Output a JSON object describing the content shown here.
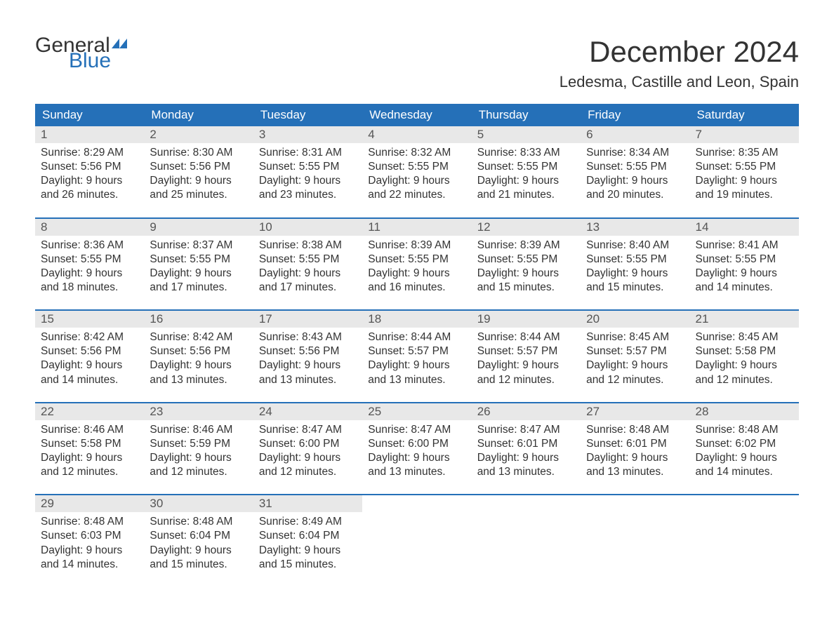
{
  "logo": {
    "general": "General",
    "blue": "Blue",
    "flag_color": "#2570b8"
  },
  "title": "December 2024",
  "location": "Ledesma, Castille and Leon, Spain",
  "colors": {
    "header_bg": "#2570b8",
    "header_text": "#ffffff",
    "daynum_bg": "#e8e8e8",
    "daynum_text": "#555555",
    "body_text": "#333333",
    "rule": "#2570b8",
    "page_bg": "#ffffff"
  },
  "typography": {
    "title_fontsize": 42,
    "location_fontsize": 22,
    "weekday_fontsize": 17,
    "daynum_fontsize": 17,
    "cell_fontsize": 15.5
  },
  "weekdays": [
    "Sunday",
    "Monday",
    "Tuesday",
    "Wednesday",
    "Thursday",
    "Friday",
    "Saturday"
  ],
  "weeks": [
    [
      {
        "day": "1",
        "sunrise": "Sunrise: 8:29 AM",
        "sunset": "Sunset: 5:56 PM",
        "dl1": "Daylight: 9 hours",
        "dl2": "and 26 minutes."
      },
      {
        "day": "2",
        "sunrise": "Sunrise: 8:30 AM",
        "sunset": "Sunset: 5:56 PM",
        "dl1": "Daylight: 9 hours",
        "dl2": "and 25 minutes."
      },
      {
        "day": "3",
        "sunrise": "Sunrise: 8:31 AM",
        "sunset": "Sunset: 5:55 PM",
        "dl1": "Daylight: 9 hours",
        "dl2": "and 23 minutes."
      },
      {
        "day": "4",
        "sunrise": "Sunrise: 8:32 AM",
        "sunset": "Sunset: 5:55 PM",
        "dl1": "Daylight: 9 hours",
        "dl2": "and 22 minutes."
      },
      {
        "day": "5",
        "sunrise": "Sunrise: 8:33 AM",
        "sunset": "Sunset: 5:55 PM",
        "dl1": "Daylight: 9 hours",
        "dl2": "and 21 minutes."
      },
      {
        "day": "6",
        "sunrise": "Sunrise: 8:34 AM",
        "sunset": "Sunset: 5:55 PM",
        "dl1": "Daylight: 9 hours",
        "dl2": "and 20 minutes."
      },
      {
        "day": "7",
        "sunrise": "Sunrise: 8:35 AM",
        "sunset": "Sunset: 5:55 PM",
        "dl1": "Daylight: 9 hours",
        "dl2": "and 19 minutes."
      }
    ],
    [
      {
        "day": "8",
        "sunrise": "Sunrise: 8:36 AM",
        "sunset": "Sunset: 5:55 PM",
        "dl1": "Daylight: 9 hours",
        "dl2": "and 18 minutes."
      },
      {
        "day": "9",
        "sunrise": "Sunrise: 8:37 AM",
        "sunset": "Sunset: 5:55 PM",
        "dl1": "Daylight: 9 hours",
        "dl2": "and 17 minutes."
      },
      {
        "day": "10",
        "sunrise": "Sunrise: 8:38 AM",
        "sunset": "Sunset: 5:55 PM",
        "dl1": "Daylight: 9 hours",
        "dl2": "and 17 minutes."
      },
      {
        "day": "11",
        "sunrise": "Sunrise: 8:39 AM",
        "sunset": "Sunset: 5:55 PM",
        "dl1": "Daylight: 9 hours",
        "dl2": "and 16 minutes."
      },
      {
        "day": "12",
        "sunrise": "Sunrise: 8:39 AM",
        "sunset": "Sunset: 5:55 PM",
        "dl1": "Daylight: 9 hours",
        "dl2": "and 15 minutes."
      },
      {
        "day": "13",
        "sunrise": "Sunrise: 8:40 AM",
        "sunset": "Sunset: 5:55 PM",
        "dl1": "Daylight: 9 hours",
        "dl2": "and 15 minutes."
      },
      {
        "day": "14",
        "sunrise": "Sunrise: 8:41 AM",
        "sunset": "Sunset: 5:55 PM",
        "dl1": "Daylight: 9 hours",
        "dl2": "and 14 minutes."
      }
    ],
    [
      {
        "day": "15",
        "sunrise": "Sunrise: 8:42 AM",
        "sunset": "Sunset: 5:56 PM",
        "dl1": "Daylight: 9 hours",
        "dl2": "and 14 minutes."
      },
      {
        "day": "16",
        "sunrise": "Sunrise: 8:42 AM",
        "sunset": "Sunset: 5:56 PM",
        "dl1": "Daylight: 9 hours",
        "dl2": "and 13 minutes."
      },
      {
        "day": "17",
        "sunrise": "Sunrise: 8:43 AM",
        "sunset": "Sunset: 5:56 PM",
        "dl1": "Daylight: 9 hours",
        "dl2": "and 13 minutes."
      },
      {
        "day": "18",
        "sunrise": "Sunrise: 8:44 AM",
        "sunset": "Sunset: 5:57 PM",
        "dl1": "Daylight: 9 hours",
        "dl2": "and 13 minutes."
      },
      {
        "day": "19",
        "sunrise": "Sunrise: 8:44 AM",
        "sunset": "Sunset: 5:57 PM",
        "dl1": "Daylight: 9 hours",
        "dl2": "and 12 minutes."
      },
      {
        "day": "20",
        "sunrise": "Sunrise: 8:45 AM",
        "sunset": "Sunset: 5:57 PM",
        "dl1": "Daylight: 9 hours",
        "dl2": "and 12 minutes."
      },
      {
        "day": "21",
        "sunrise": "Sunrise: 8:45 AM",
        "sunset": "Sunset: 5:58 PM",
        "dl1": "Daylight: 9 hours",
        "dl2": "and 12 minutes."
      }
    ],
    [
      {
        "day": "22",
        "sunrise": "Sunrise: 8:46 AM",
        "sunset": "Sunset: 5:58 PM",
        "dl1": "Daylight: 9 hours",
        "dl2": "and 12 minutes."
      },
      {
        "day": "23",
        "sunrise": "Sunrise: 8:46 AM",
        "sunset": "Sunset: 5:59 PM",
        "dl1": "Daylight: 9 hours",
        "dl2": "and 12 minutes."
      },
      {
        "day": "24",
        "sunrise": "Sunrise: 8:47 AM",
        "sunset": "Sunset: 6:00 PM",
        "dl1": "Daylight: 9 hours",
        "dl2": "and 12 minutes."
      },
      {
        "day": "25",
        "sunrise": "Sunrise: 8:47 AM",
        "sunset": "Sunset: 6:00 PM",
        "dl1": "Daylight: 9 hours",
        "dl2": "and 13 minutes."
      },
      {
        "day": "26",
        "sunrise": "Sunrise: 8:47 AM",
        "sunset": "Sunset: 6:01 PM",
        "dl1": "Daylight: 9 hours",
        "dl2": "and 13 minutes."
      },
      {
        "day": "27",
        "sunrise": "Sunrise: 8:48 AM",
        "sunset": "Sunset: 6:01 PM",
        "dl1": "Daylight: 9 hours",
        "dl2": "and 13 minutes."
      },
      {
        "day": "28",
        "sunrise": "Sunrise: 8:48 AM",
        "sunset": "Sunset: 6:02 PM",
        "dl1": "Daylight: 9 hours",
        "dl2": "and 14 minutes."
      }
    ],
    [
      {
        "day": "29",
        "sunrise": "Sunrise: 8:48 AM",
        "sunset": "Sunset: 6:03 PM",
        "dl1": "Daylight: 9 hours",
        "dl2": "and 14 minutes."
      },
      {
        "day": "30",
        "sunrise": "Sunrise: 8:48 AM",
        "sunset": "Sunset: 6:04 PM",
        "dl1": "Daylight: 9 hours",
        "dl2": "and 15 minutes."
      },
      {
        "day": "31",
        "sunrise": "Sunrise: 8:49 AM",
        "sunset": "Sunset: 6:04 PM",
        "dl1": "Daylight: 9 hours",
        "dl2": "and 15 minutes."
      },
      null,
      null,
      null,
      null
    ]
  ]
}
